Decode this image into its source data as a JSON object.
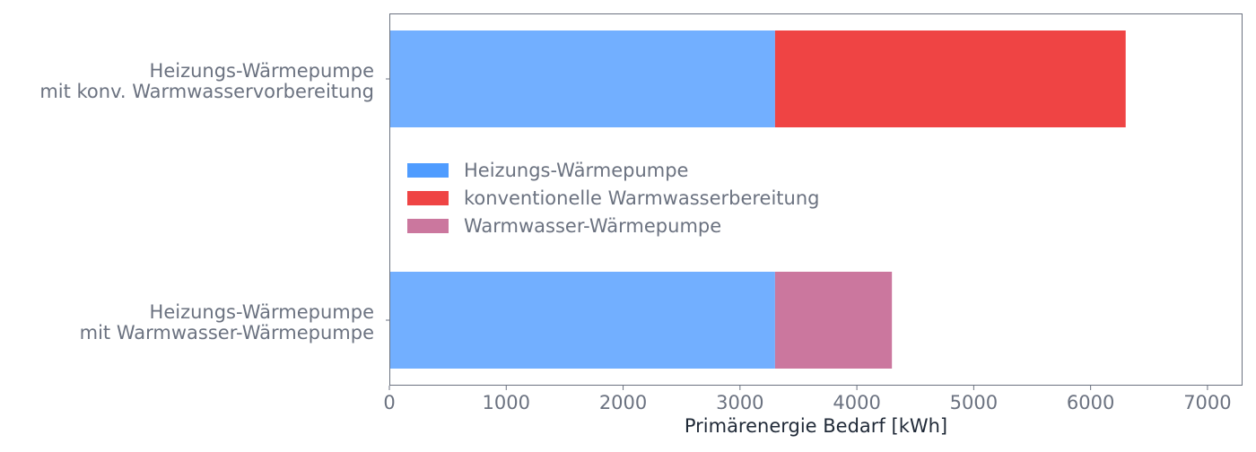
{
  "chart_data": {
    "type": "bar",
    "orientation": "horizontal",
    "stacked": true,
    "categories": [
      [
        "Heizungs-Wärmepumpe",
        "mit konv. Warmwasservorbereitung"
      ],
      [
        "Heizungs-Wärmepumpe",
        "mit Warmwasser-Wärmepumpe"
      ]
    ],
    "series": [
      {
        "name": "Heizungs-Wärmepumpe",
        "values": [
          3300,
          3300
        ],
        "color": "#72AFFF",
        "legend_color": "#4F9CFF"
      },
      {
        "name": "konventionelle Warmwasserbereitung",
        "values": [
          3000,
          0
        ],
        "color": "#EF4444",
        "legend_color": "#EF4444"
      },
      {
        "name": "Warmwasser-Wärmepumpe",
        "values": [
          0,
          1000
        ],
        "color": "#CB779E",
        "legend_color": "#CB779E"
      }
    ],
    "xlabel": "Primärenergie Bedarf [kWh]",
    "ylabel": "",
    "xlim": [
      0,
      7300
    ],
    "xticks": [
      0,
      1000,
      2000,
      3000,
      4000,
      5000,
      6000,
      7000
    ],
    "grid": false,
    "legend_placement": "center-left",
    "colors": {
      "text": "#6B7280",
      "xlabel": "#1F2937",
      "frame": "#6B7280"
    }
  }
}
